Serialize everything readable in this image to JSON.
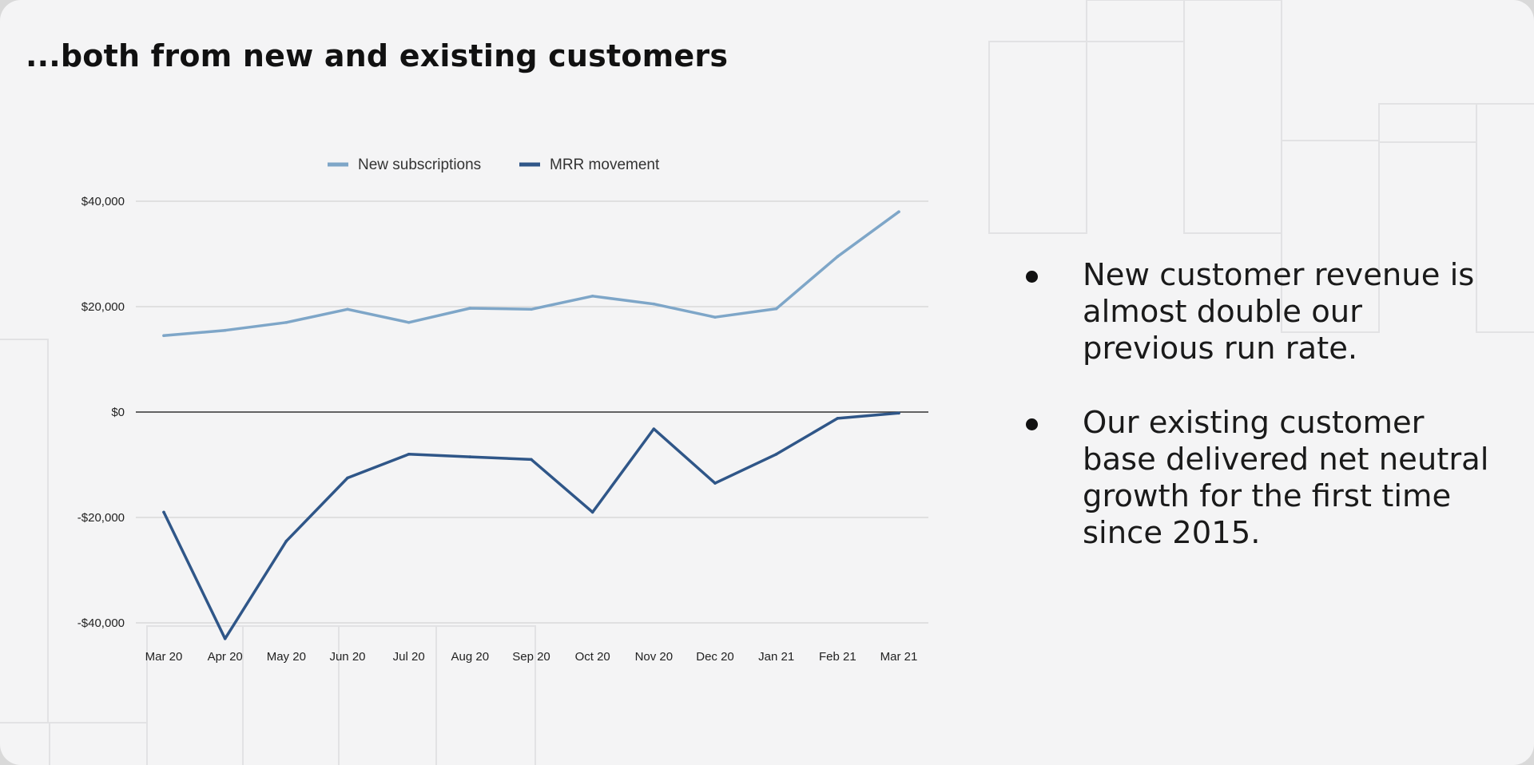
{
  "slide": {
    "title": "...both from new and existing customers",
    "bullets": [
      {
        "text": "New customer revenue is almost double our previous run rate."
      },
      {
        "text": "Our existing customer base delivered net neutral growth for the first time since 2015."
      }
    ]
  },
  "colors": {
    "new_subscriptions": "#7ea6c8",
    "mrr_movement": "#2f5688",
    "gridline": "#d4d4d4",
    "zero_line": "#333333"
  },
  "chart_data": {
    "type": "line",
    "categories": [
      "Mar 20",
      "Apr 20",
      "May 20",
      "Jun 20",
      "Jul 20",
      "Aug 20",
      "Sep 20",
      "Oct 20",
      "Nov 20",
      "Dec 20",
      "Jan 21",
      "Feb 21",
      "Mar 21"
    ],
    "series": [
      {
        "name": "New subscriptions",
        "color": "#7ea6c8",
        "values": [
          14500,
          15500,
          17000,
          19500,
          17000,
          19700,
          19500,
          22000,
          20500,
          18000,
          19600,
          29500,
          38000
        ]
      },
      {
        "name": "MRR movement",
        "color": "#2f5688",
        "values": [
          -19000,
          -43000,
          -24500,
          -12500,
          -8000,
          -8500,
          -9000,
          -19000,
          -3200,
          -13500,
          -8000,
          -1200,
          -200
        ]
      }
    ],
    "y_ticks": [
      {
        "value": 40000,
        "label": "$40,000"
      },
      {
        "value": 20000,
        "label": "$20,000"
      },
      {
        "value": 0,
        "label": "$0"
      },
      {
        "value": -20000,
        "label": "-$20,000"
      },
      {
        "value": -40000,
        "label": "-$40,000"
      }
    ],
    "ylim": [
      -40000,
      40000
    ],
    "grid": true,
    "legend_position": "top-center",
    "title": "",
    "xlabel": "",
    "ylabel": ""
  }
}
